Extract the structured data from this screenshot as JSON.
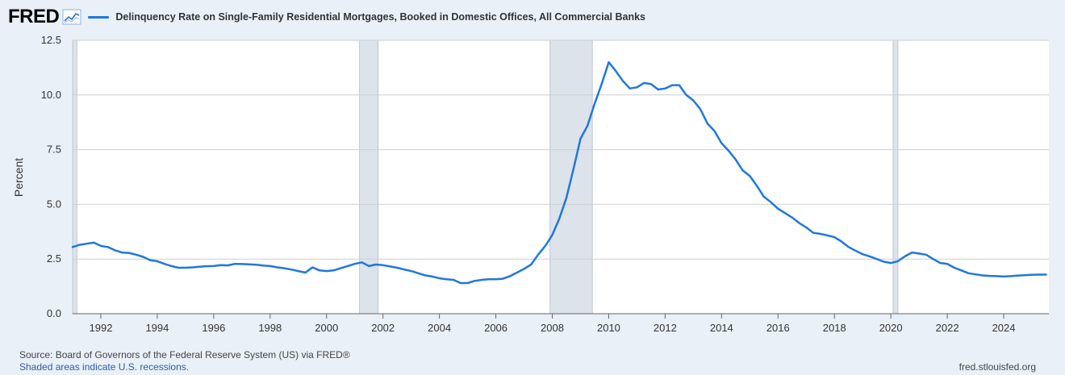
{
  "header": {
    "logo": "FRED",
    "logo_icon": "line-graph-icon",
    "series_title": "Delinquency Rate on Single-Family Residential Mortgages, Booked in Domestic Offices, All Commercial Banks"
  },
  "footer": {
    "source": "Source: Board of Governors of the Federal Reserve System (US) via FRED®",
    "recession_note": "Shaded areas indicate U.S. recessions.",
    "site": "fred.stlouisfed.org"
  },
  "colors": {
    "series": "#1f77e0",
    "recession": "#dde3ea",
    "background": "#e9f0f8",
    "plot": "#ffffff"
  },
  "chart_data": {
    "type": "line",
    "ylabel": "Percent",
    "xlabel": "",
    "ylim": [
      0,
      12.5
    ],
    "xlim": [
      1991.0,
      2025.6
    ],
    "yticks": [
      "0.0",
      "2.5",
      "5.0",
      "7.5",
      "10.0",
      "12.5"
    ],
    "xticks": [
      "1992",
      "1994",
      "1996",
      "1998",
      "2000",
      "2002",
      "2004",
      "2006",
      "2008",
      "2010",
      "2012",
      "2014",
      "2016",
      "2018",
      "2020",
      "2022",
      "2024"
    ],
    "grid": "horizontal",
    "recessions": [
      [
        1991.0,
        1991.15
      ],
      [
        2001.17,
        2001.83
      ],
      [
        2007.92,
        2009.42
      ],
      [
        2020.08,
        2020.25
      ]
    ],
    "series": [
      {
        "x": [
          1991.0,
          1991.25,
          1991.5,
          1991.75,
          1992.0,
          1992.25,
          1992.5,
          1992.75,
          1993.0,
          1993.25,
          1993.5,
          1993.75,
          1994.0,
          1994.25,
          1994.5,
          1994.75,
          1995.0,
          1995.25,
          1995.5,
          1995.75,
          1996.0,
          1996.25,
          1996.5,
          1996.75,
          1997.0,
          1997.25,
          1997.5,
          1997.75,
          1998.0,
          1998.25,
          1998.5,
          1998.75,
          1999.0,
          1999.25,
          1999.5,
          1999.75,
          2000.0,
          2000.25,
          2000.5,
          2000.75,
          2001.0,
          2001.25,
          2001.5,
          2001.75,
          2002.0,
          2002.25,
          2002.5,
          2002.75,
          2003.0,
          2003.25,
          2003.5,
          2003.75,
          2004.0,
          2004.25,
          2004.5,
          2004.75,
          2005.0,
          2005.25,
          2005.5,
          2005.75,
          2006.0,
          2006.25,
          2006.5,
          2006.75,
          2007.0,
          2007.25,
          2007.5,
          2007.75,
          2008.0,
          2008.25,
          2008.5,
          2008.75,
          2009.0,
          2009.25,
          2009.5,
          2009.75,
          2010.0,
          2010.25,
          2010.5,
          2010.75,
          2011.0,
          2011.25,
          2011.5,
          2011.75,
          2012.0,
          2012.25,
          2012.5,
          2012.75,
          2013.0,
          2013.25,
          2013.5,
          2013.75,
          2014.0,
          2014.25,
          2014.5,
          2014.75,
          2015.0,
          2015.25,
          2015.5,
          2015.75,
          2016.0,
          2016.25,
          2016.5,
          2016.75,
          2017.0,
          2017.25,
          2017.5,
          2017.75,
          2018.0,
          2018.25,
          2018.5,
          2018.75,
          2019.0,
          2019.25,
          2019.5,
          2019.75,
          2020.0,
          2020.25,
          2020.5,
          2020.75,
          2021.0,
          2021.25,
          2021.5,
          2021.75,
          2022.0,
          2022.25,
          2022.5,
          2022.75,
          2023.0,
          2023.25,
          2023.5,
          2023.75,
          2024.0,
          2024.25,
          2024.5,
          2024.75,
          2025.0,
          2025.25,
          2025.5
        ],
        "values": [
          3.05,
          3.15,
          3.2,
          3.25,
          3.1,
          3.05,
          2.9,
          2.8,
          2.78,
          2.7,
          2.6,
          2.45,
          2.4,
          2.28,
          2.18,
          2.1,
          2.1,
          2.12,
          2.15,
          2.17,
          2.18,
          2.22,
          2.21,
          2.28,
          2.27,
          2.26,
          2.24,
          2.2,
          2.18,
          2.12,
          2.08,
          2.02,
          1.95,
          1.88,
          2.12,
          1.98,
          1.95,
          1.98,
          2.08,
          2.18,
          2.28,
          2.35,
          2.18,
          2.25,
          2.22,
          2.16,
          2.1,
          2.02,
          1.95,
          1.85,
          1.75,
          1.7,
          1.62,
          1.58,
          1.55,
          1.4,
          1.4,
          1.5,
          1.55,
          1.58,
          1.58,
          1.6,
          1.72,
          1.88,
          2.05,
          2.25,
          2.7,
          3.1,
          3.6,
          4.35,
          5.3,
          6.6,
          8.0,
          8.6,
          9.6,
          10.5,
          11.5,
          11.1,
          10.65,
          10.3,
          10.35,
          10.55,
          10.5,
          10.25,
          10.3,
          10.45,
          10.45,
          10.0,
          9.75,
          9.35,
          8.7,
          8.35,
          7.8,
          7.45,
          7.05,
          6.55,
          6.3,
          5.85,
          5.35,
          5.1,
          4.8,
          4.6,
          4.4,
          4.15,
          3.95,
          3.7,
          3.65,
          3.58,
          3.5,
          3.3,
          3.05,
          2.88,
          2.72,
          2.62,
          2.5,
          2.38,
          2.32,
          2.4,
          2.62,
          2.8,
          2.75,
          2.7,
          2.5,
          2.32,
          2.28,
          2.1,
          1.98,
          1.85,
          1.8,
          1.75,
          1.73,
          1.72,
          1.7,
          1.72,
          1.74,
          1.76,
          1.78,
          1.79,
          1.79
        ]
      }
    ]
  }
}
